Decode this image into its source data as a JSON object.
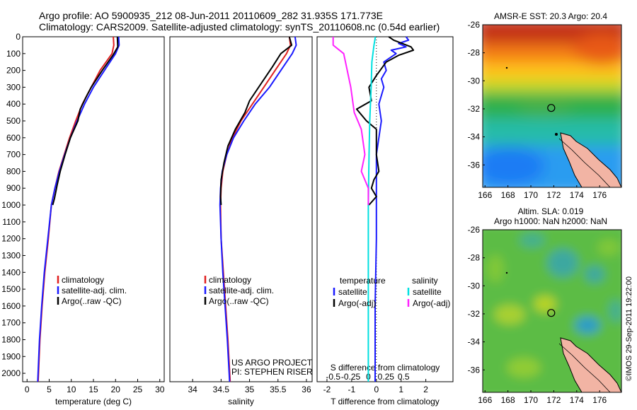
{
  "header": {
    "title_line1": "Argo profile: AO 5900935_212 08-Jun-2011 20110609_282 31.935S 171.773E",
    "title_line2": "Climatology: CARS2009. Satellite-adjusted climatology: synTS_20110608.nc (0.54d earlier)"
  },
  "credit": "©IMOS 29-Sep-2011 19:22:00",
  "colors": {
    "climatology": "#e02020",
    "satellite": "#1a1aff",
    "argo": "#000000",
    "s_satellite": "#00e0e0",
    "s_argo": "#ff20ff"
  },
  "chart_data": [
    {
      "type": "line",
      "id": "temperature",
      "xlabel": "temperature (deg C)",
      "ylabel": "",
      "xlim": [
        -1,
        31
      ],
      "ylim": [
        2050,
        0
      ],
      "xticks": [
        0,
        5,
        10,
        15,
        20,
        25,
        30
      ],
      "xtick_labels": [
        "0",
        "5",
        "10",
        "15",
        "20",
        "25",
        "30"
      ],
      "yticks": [
        0,
        100,
        200,
        300,
        400,
        500,
        600,
        700,
        800,
        900,
        1000,
        1100,
        1200,
        1300,
        1400,
        1500,
        1600,
        1700,
        1800,
        1900,
        2000
      ],
      "legend": [
        "climatology",
        "satellite-adj. clim.",
        "Argo(..raw -QC)"
      ],
      "series": [
        {
          "name": "climatology",
          "color_key": "climatology",
          "points": [
            [
              19.5,
              0
            ],
            [
              19.6,
              50
            ],
            [
              19.2,
              100
            ],
            [
              16.5,
              200
            ],
            [
              14.5,
              300
            ],
            [
              12.5,
              400
            ],
            [
              11.0,
              500
            ],
            [
              9.6,
              600
            ],
            [
              8.4,
              700
            ],
            [
              7.2,
              800
            ],
            [
              6.3,
              900
            ],
            [
              5.5,
              1000
            ],
            [
              4.8,
              1200
            ],
            [
              4.0,
              1400
            ],
            [
              3.4,
              1600
            ],
            [
              2.9,
              1800
            ],
            [
              2.5,
              2050
            ]
          ]
        },
        {
          "name": "satellite-adj. clim.",
          "color_key": "satellite",
          "points": [
            [
              20.7,
              0
            ],
            [
              20.8,
              50
            ],
            [
              20.0,
              100
            ],
            [
              17.5,
              200
            ],
            [
              15.0,
              300
            ],
            [
              13.0,
              400
            ],
            [
              11.3,
              500
            ],
            [
              9.8,
              600
            ],
            [
              8.5,
              700
            ],
            [
              7.3,
              800
            ],
            [
              6.3,
              900
            ],
            [
              5.5,
              1000
            ],
            [
              4.7,
              1200
            ],
            [
              3.9,
              1400
            ],
            [
              3.3,
              1600
            ],
            [
              2.8,
              1800
            ],
            [
              2.4,
              2050
            ]
          ]
        },
        {
          "name": "Argo(..raw -QC)",
          "color_key": "argo",
          "points": [
            [
              20.4,
              0
            ],
            [
              20.5,
              60
            ],
            [
              19.4,
              110
            ],
            [
              17.0,
              200
            ],
            [
              14.5,
              300
            ],
            [
              13.5,
              350
            ],
            [
              12.0,
              430
            ],
            [
              11.5,
              500
            ],
            [
              9.8,
              600
            ],
            [
              8.6,
              700
            ],
            [
              7.5,
              800
            ],
            [
              6.8,
              880
            ],
            [
              6.2,
              960
            ],
            [
              5.8,
              1000
            ]
          ]
        }
      ]
    },
    {
      "type": "line",
      "id": "salinity",
      "xlabel": "salinity",
      "ylabel": "",
      "xlim": [
        33.6,
        36.1
      ],
      "ylim": [
        2050,
        0
      ],
      "xticks": [
        34,
        34.5,
        35,
        35.5,
        36
      ],
      "xtick_labels": [
        "34",
        "34.5",
        "35",
        "35.5",
        "36"
      ],
      "legend": [
        "climatology",
        "satellite-adj. clim.",
        "Argo(..raw -QC)"
      ],
      "annotation": [
        "US ARGO PROJECT",
        "PI: STEPHEN RISER"
      ],
      "series": [
        {
          "name": "climatology",
          "color_key": "climatology",
          "points": [
            [
              35.7,
              0
            ],
            [
              35.72,
              50
            ],
            [
              35.65,
              100
            ],
            [
              35.45,
              200
            ],
            [
              35.25,
              300
            ],
            [
              35.05,
              400
            ],
            [
              34.85,
              500
            ],
            [
              34.7,
              600
            ],
            [
              34.6,
              700
            ],
            [
              34.53,
              800
            ],
            [
              34.5,
              900
            ],
            [
              34.49,
              1000
            ],
            [
              34.5,
              1200
            ],
            [
              34.54,
              1400
            ],
            [
              34.58,
              1600
            ],
            [
              34.62,
              1800
            ],
            [
              34.66,
              2050
            ]
          ]
        },
        {
          "name": "satellite-adj. clim.",
          "color_key": "satellite",
          "points": [
            [
              35.8,
              0
            ],
            [
              35.82,
              50
            ],
            [
              35.75,
              100
            ],
            [
              35.55,
              200
            ],
            [
              35.35,
              300
            ],
            [
              35.1,
              400
            ],
            [
              34.9,
              500
            ],
            [
              34.72,
              600
            ],
            [
              34.6,
              700
            ],
            [
              34.52,
              800
            ],
            [
              34.49,
              900
            ],
            [
              34.48,
              1000
            ],
            [
              34.5,
              1200
            ],
            [
              34.53,
              1400
            ],
            [
              34.57,
              1600
            ],
            [
              34.61,
              1800
            ],
            [
              34.65,
              2050
            ]
          ]
        },
        {
          "name": "Argo(..raw -QC)",
          "color_key": "argo",
          "points": [
            [
              35.7,
              0
            ],
            [
              35.74,
              50
            ],
            [
              35.55,
              100
            ],
            [
              35.4,
              180
            ],
            [
              35.2,
              280
            ],
            [
              35.0,
              380
            ],
            [
              34.92,
              450
            ],
            [
              34.75,
              550
            ],
            [
              34.62,
              650
            ],
            [
              34.55,
              750
            ],
            [
              34.5,
              850
            ],
            [
              34.49,
              950
            ],
            [
              34.5,
              1000
            ]
          ]
        }
      ]
    },
    {
      "type": "line",
      "id": "difference",
      "xlabel": "T difference from climatology",
      "xlabel_top": "S difference from climatology",
      "xlim": [
        -2.4,
        3.1
      ],
      "ylim": [
        2050,
        0
      ],
      "xticks": [
        -2,
        -1,
        0,
        1,
        2
      ],
      "xtick_labels": [
        "-2",
        "-1",
        "0",
        "1",
        "2"
      ],
      "xticks_top": [
        -0.5,
        -0.25,
        0,
        0.25,
        0.5
      ],
      "xtick_labels_top": [
        "-0.5",
        "-0.25",
        "0",
        "0.25",
        "0.5"
      ],
      "legend_headers": [
        "temperature",
        "salinity"
      ],
      "legend": [
        "satellite",
        "Argo(-adj)",
        "satellite",
        "Argo(-adj)"
      ],
      "series": [
        {
          "name": "satellite",
          "group": "temperature",
          "color_key": "satellite",
          "points": [
            [
              1.2,
              0
            ],
            [
              1.3,
              20
            ],
            [
              0.9,
              40
            ],
            [
              1.2,
              60
            ],
            [
              0.6,
              80
            ],
            [
              0.8,
              100
            ],
            [
              0.3,
              150
            ],
            [
              0.4,
              200
            ],
            [
              0.2,
              250
            ],
            [
              0.3,
              300
            ],
            [
              0.1,
              400
            ],
            [
              0.2,
              500
            ],
            [
              0.1,
              600
            ],
            [
              0.0,
              700
            ],
            [
              0.0,
              900
            ],
            [
              0.0,
              1200
            ],
            [
              -0.05,
              1600
            ],
            [
              -0.05,
              2050
            ]
          ]
        },
        {
          "name": "Argo(-adj)",
          "group": "temperature",
          "color_key": "argo",
          "points": [
            [
              0.5,
              0
            ],
            [
              0.7,
              20
            ],
            [
              1.4,
              60
            ],
            [
              1.5,
              80
            ],
            [
              0.9,
              110
            ],
            [
              0.4,
              150
            ],
            [
              0.0,
              230
            ],
            [
              -0.3,
              300
            ],
            [
              -0.2,
              380
            ],
            [
              -0.8,
              430
            ],
            [
              -0.4,
              500
            ],
            [
              0.0,
              550
            ],
            [
              0.0,
              700
            ],
            [
              0.1,
              800
            ],
            [
              -0.1,
              850
            ],
            [
              -0.2,
              900
            ],
            [
              0.0,
              950
            ],
            [
              -0.3,
              1000
            ]
          ]
        },
        {
          "name": "satellite",
          "group": "salinity",
          "color_key": "s_satellite",
          "points": [
            [
              0.1,
              0
            ],
            [
              0.08,
              50
            ],
            [
              0.05,
              150
            ],
            [
              0.04,
              300
            ],
            [
              0.02,
              500
            ],
            [
              0.01,
              700
            ],
            [
              0.0,
              1000
            ],
            [
              0.0,
              1500
            ],
            [
              0.0,
              2050
            ]
          ]
        },
        {
          "name": "Argo(-adj)",
          "group": "salinity",
          "color_key": "s_argo",
          "points": [
            [
              -0.5,
              0
            ],
            [
              -0.5,
              50
            ],
            [
              -0.35,
              100
            ],
            [
              -0.3,
              200
            ],
            [
              -0.25,
              300
            ],
            [
              -0.2,
              450
            ],
            [
              -0.1,
              550
            ],
            [
              -0.05,
              700
            ],
            [
              -0.1,
              800
            ],
            [
              0.0,
              900
            ],
            [
              0.0,
              1000
            ]
          ]
        }
      ]
    }
  ],
  "maps": [
    {
      "id": "sst",
      "title": "AMSR-E SST: 20.3 Argo: 20.4",
      "lon_ticks": [
        166,
        168,
        170,
        172,
        174,
        176
      ],
      "lat_ticks": [
        -26,
        -28,
        -30,
        -32,
        -34,
        -36
      ],
      "lon_range": [
        165.8,
        177.9
      ],
      "lat_range": [
        -37.6,
        -26
      ],
      "marker": {
        "lon": 171.773,
        "lat": -31.935
      }
    },
    {
      "id": "sla",
      "title_line1": "Altim. SLA: 0.019",
      "title_line2": "Argo h1000: NaN h2000: NaN",
      "lon_ticks": [
        166,
        168,
        170,
        172,
        174,
        176
      ],
      "lat_ticks": [
        -26,
        -28,
        -30,
        -32,
        -34,
        -36
      ],
      "lon_range": [
        165.8,
        177.9
      ],
      "lat_range": [
        -37.6,
        -26
      ],
      "marker": {
        "lon": 171.773,
        "lat": -31.935
      }
    }
  ]
}
